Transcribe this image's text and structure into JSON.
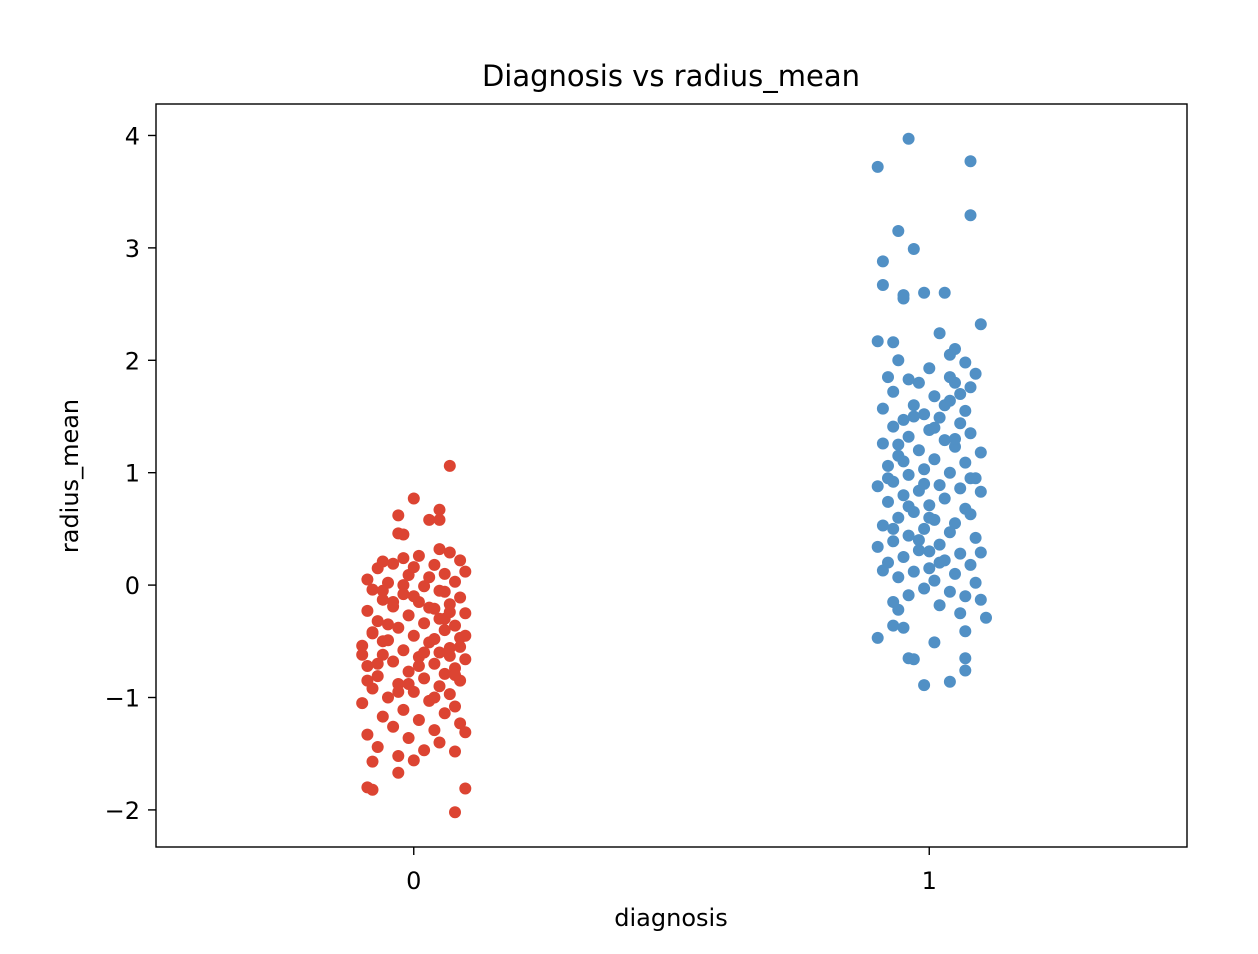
{
  "chart_data": {
    "type": "scatter",
    "title": "Diagnosis vs radius_mean",
    "xlabel": "diagnosis",
    "ylabel": "radius_mean",
    "xlim": [
      -0.5,
      1.5
    ],
    "ylim": [
      -2.33,
      4.28
    ],
    "x_ticks": [
      "0",
      "1"
    ],
    "y_ticks": [
      "−2",
      "−1",
      "0",
      "1",
      "2",
      "3",
      "4"
    ],
    "y_tick_values": [
      -2,
      -1,
      0,
      1,
      2,
      3,
      4
    ],
    "grid": false,
    "legend": "none",
    "series": [
      {
        "color": "#dc4432",
        "category": 0,
        "points": [
          [
            0.07,
            1.06
          ],
          [
            0.0,
            0.77
          ],
          [
            0.05,
            0.67
          ],
          [
            -0.03,
            0.62
          ],
          [
            0.03,
            0.58
          ],
          [
            0.05,
            0.58
          ],
          [
            -0.03,
            0.46
          ],
          [
            -0.02,
            0.45
          ],
          [
            0.05,
            0.32
          ],
          [
            0.07,
            0.29
          ],
          [
            0.01,
            0.26
          ],
          [
            -0.02,
            0.24
          ],
          [
            0.09,
            0.22
          ],
          [
            -0.06,
            0.21
          ],
          [
            -0.04,
            0.19
          ],
          [
            0.04,
            0.18
          ],
          [
            0.0,
            0.16
          ],
          [
            -0.07,
            0.15
          ],
          [
            0.1,
            0.12
          ],
          [
            0.06,
            0.1
          ],
          [
            -0.01,
            0.09
          ],
          [
            0.03,
            0.07
          ],
          [
            -0.09,
            0.05
          ],
          [
            0.08,
            0.03
          ],
          [
            -0.05,
            0.02
          ],
          [
            0.02,
            -0.01
          ],
          [
            -0.08,
            -0.04
          ],
          [
            0.06,
            -0.06
          ],
          [
            -0.02,
            -0.08
          ],
          [
            0.09,
            -0.11
          ],
          [
            -0.06,
            -0.13
          ],
          [
            0.01,
            -0.15
          ],
          [
            0.07,
            -0.17
          ],
          [
            -0.04,
            -0.19
          ],
          [
            0.04,
            -0.21
          ],
          [
            -0.09,
            -0.23
          ],
          [
            0.1,
            -0.25
          ],
          [
            -0.01,
            -0.27
          ],
          [
            0.05,
            -0.3
          ],
          [
            -0.07,
            -0.32
          ],
          [
            0.02,
            -0.34
          ],
          [
            0.08,
            -0.36
          ],
          [
            -0.03,
            -0.38
          ],
          [
            0.06,
            -0.4
          ],
          [
            -0.08,
            -0.43
          ],
          [
            0.0,
            -0.45
          ],
          [
            0.09,
            -0.47
          ],
          [
            -0.05,
            -0.49
          ],
          [
            0.03,
            -0.51
          ],
          [
            -0.1,
            -0.54
          ],
          [
            0.07,
            -0.56
          ],
          [
            -0.02,
            -0.58
          ],
          [
            0.05,
            -0.6
          ],
          [
            -0.06,
            -0.62
          ],
          [
            0.01,
            -0.64
          ],
          [
            0.1,
            -0.66
          ],
          [
            -0.04,
            -0.68
          ],
          [
            0.04,
            -0.7
          ],
          [
            -0.09,
            -0.72
          ],
          [
            0.08,
            -0.74
          ],
          [
            -0.01,
            -0.77
          ],
          [
            0.06,
            -0.79
          ],
          [
            -0.07,
            -0.81
          ],
          [
            0.02,
            -0.83
          ],
          [
            0.09,
            -0.85
          ],
          [
            -0.03,
            -0.88
          ],
          [
            0.05,
            -0.9
          ],
          [
            -0.08,
            -0.92
          ],
          [
            0.0,
            -0.95
          ],
          [
            0.07,
            -0.97
          ],
          [
            -0.05,
            -1.0
          ],
          [
            0.03,
            -1.03
          ],
          [
            -0.1,
            -1.05
          ],
          [
            0.08,
            -1.08
          ],
          [
            -0.02,
            -1.11
          ],
          [
            0.06,
            -1.14
          ],
          [
            -0.06,
            -1.17
          ],
          [
            0.01,
            -1.2
          ],
          [
            0.09,
            -1.23
          ],
          [
            -0.04,
            -1.26
          ],
          [
            0.04,
            -1.29
          ],
          [
            -0.09,
            -1.33
          ],
          [
            0.1,
            -1.31
          ],
          [
            -0.01,
            -1.36
          ],
          [
            0.05,
            -1.4
          ],
          [
            -0.07,
            -1.44
          ],
          [
            0.02,
            -1.47
          ],
          [
            0.08,
            -1.48
          ],
          [
            -0.03,
            -1.52
          ],
          [
            0.0,
            -1.56
          ],
          [
            -0.08,
            -1.57
          ],
          [
            -0.03,
            -1.67
          ],
          [
            -0.09,
            -1.8
          ],
          [
            -0.08,
            -1.82
          ],
          [
            0.1,
            -1.81
          ],
          [
            0.08,
            -2.02
          ],
          [
            -0.06,
            -0.5
          ],
          [
            0.03,
            -0.2
          ],
          [
            -0.02,
            0.0
          ],
          [
            0.07,
            -0.63
          ],
          [
            -0.09,
            -0.85
          ],
          [
            0.04,
            -1.0
          ],
          [
            -0.05,
            -0.35
          ],
          [
            0.09,
            -0.55
          ],
          [
            0.0,
            -0.1
          ],
          [
            -0.07,
            -0.7
          ],
          [
            0.06,
            -0.3
          ],
          [
            -0.01,
            -0.88
          ],
          [
            0.02,
            -0.6
          ],
          [
            -0.04,
            -0.15
          ],
          [
            0.08,
            -0.8
          ],
          [
            -0.08,
            -0.42
          ],
          [
            0.05,
            -0.05
          ],
          [
            -0.03,
            -0.95
          ],
          [
            0.1,
            -0.45
          ],
          [
            -0.06,
            -0.05
          ],
          [
            0.01,
            -0.72
          ],
          [
            0.07,
            -0.24
          ],
          [
            -0.1,
            -0.62
          ],
          [
            0.04,
            -0.48
          ]
        ]
      },
      {
        "color": "#5190c5",
        "category": 1,
        "points": [
          [
            0.96,
            3.97
          ],
          [
            0.9,
            3.72
          ],
          [
            1.08,
            3.77
          ],
          [
            1.08,
            3.29
          ],
          [
            0.94,
            3.15
          ],
          [
            0.97,
            2.99
          ],
          [
            0.91,
            2.88
          ],
          [
            0.91,
            2.67
          ],
          [
            0.95,
            2.58
          ],
          [
            0.95,
            2.55
          ],
          [
            0.99,
            2.6
          ],
          [
            1.03,
            2.6
          ],
          [
            1.1,
            2.32
          ],
          [
            1.02,
            2.24
          ],
          [
            0.9,
            2.17
          ],
          [
            0.93,
            2.16
          ],
          [
            1.05,
            2.1
          ],
          [
            0.94,
            2.0
          ],
          [
            1.04,
            2.05
          ],
          [
            1.07,
            1.98
          ],
          [
            1.0,
            1.93
          ],
          [
            1.09,
            1.88
          ],
          [
            0.92,
            1.85
          ],
          [
            0.96,
            1.83
          ],
          [
            1.05,
            1.8
          ],
          [
            1.08,
            1.76
          ],
          [
            0.93,
            1.72
          ],
          [
            1.01,
            1.68
          ],
          [
            1.04,
            1.64
          ],
          [
            0.97,
            1.6
          ],
          [
            1.07,
            1.55
          ],
          [
            0.91,
            1.57
          ],
          [
            0.99,
            1.52
          ],
          [
            1.02,
            1.49
          ],
          [
            0.95,
            1.47
          ],
          [
            1.06,
            1.44
          ],
          [
            0.93,
            1.41
          ],
          [
            1.0,
            1.38
          ],
          [
            1.08,
            1.35
          ],
          [
            0.96,
            1.32
          ],
          [
            1.03,
            1.29
          ],
          [
            0.91,
            1.26
          ],
          [
            1.05,
            1.23
          ],
          [
            0.98,
            1.2
          ],
          [
            1.1,
            1.18
          ],
          [
            0.94,
            1.15
          ],
          [
            1.01,
            1.12
          ],
          [
            1.07,
            1.09
          ],
          [
            0.92,
            1.06
          ],
          [
            0.99,
            1.03
          ],
          [
            1.04,
            1.0
          ],
          [
            0.96,
            0.98
          ],
          [
            1.09,
            0.95
          ],
          [
            0.93,
            0.92
          ],
          [
            1.02,
            0.89
          ],
          [
            1.06,
            0.86
          ],
          [
            0.9,
            0.88
          ],
          [
            0.98,
            0.84
          ],
          [
            1.1,
            0.83
          ],
          [
            0.95,
            0.8
          ],
          [
            1.03,
            0.77
          ],
          [
            0.92,
            0.74
          ],
          [
            1.0,
            0.71
          ],
          [
            1.07,
            0.68
          ],
          [
            0.97,
            0.65
          ],
          [
            1.08,
            0.63
          ],
          [
            0.94,
            0.6
          ],
          [
            1.01,
            0.58
          ],
          [
            1.05,
            0.55
          ],
          [
            0.91,
            0.53
          ],
          [
            0.99,
            0.5
          ],
          [
            1.04,
            0.47
          ],
          [
            0.96,
            0.44
          ],
          [
            1.09,
            0.42
          ],
          [
            0.93,
            0.39
          ],
          [
            1.02,
            0.36
          ],
          [
            0.9,
            0.34
          ],
          [
            0.98,
            0.31
          ],
          [
            1.06,
            0.28
          ],
          [
            1.1,
            0.29
          ],
          [
            0.95,
            0.25
          ],
          [
            1.03,
            0.22
          ],
          [
            0.92,
            0.2
          ],
          [
            1.08,
            0.18
          ],
          [
            1.0,
            0.15
          ],
          [
            0.97,
            0.12
          ],
          [
            1.05,
            0.1
          ],
          [
            0.91,
            0.13
          ],
          [
            0.94,
            0.07
          ],
          [
            1.01,
            0.04
          ],
          [
            1.09,
            0.02
          ],
          [
            0.99,
            -0.03
          ],
          [
            1.04,
            -0.06
          ],
          [
            0.96,
            -0.09
          ],
          [
            1.07,
            -0.1
          ],
          [
            0.93,
            -0.15
          ],
          [
            1.1,
            -0.13
          ],
          [
            1.02,
            -0.18
          ],
          [
            0.94,
            -0.22
          ],
          [
            1.11,
            -0.29
          ],
          [
            1.06,
            -0.25
          ],
          [
            0.95,
            -0.38
          ],
          [
            0.93,
            -0.36
          ],
          [
            1.07,
            -0.41
          ],
          [
            0.9,
            -0.47
          ],
          [
            1.01,
            -0.51
          ],
          [
            0.96,
            -0.65
          ],
          [
            0.97,
            -0.66
          ],
          [
            1.07,
            -0.65
          ],
          [
            1.07,
            -0.76
          ],
          [
            1.04,
            -0.86
          ],
          [
            0.99,
            -0.89
          ],
          [
            0.98,
            0.4
          ],
          [
            1.0,
            0.3
          ],
          [
            0.97,
            1.5
          ],
          [
            1.01,
            1.4
          ],
          [
            0.95,
            1.1
          ],
          [
            1.03,
            1.6
          ],
          [
            0.99,
            0.9
          ],
          [
            1.05,
            1.3
          ],
          [
            0.93,
            0.5
          ],
          [
            1.06,
            1.7
          ],
          [
            0.96,
            0.7
          ],
          [
            1.02,
            0.2
          ],
          [
            0.98,
            1.8
          ],
          [
            1.08,
            0.95
          ],
          [
            0.94,
            1.25
          ],
          [
            1.0,
            0.6
          ],
          [
            1.04,
            1.85
          ],
          [
            0.92,
            0.95
          ]
        ]
      }
    ]
  }
}
